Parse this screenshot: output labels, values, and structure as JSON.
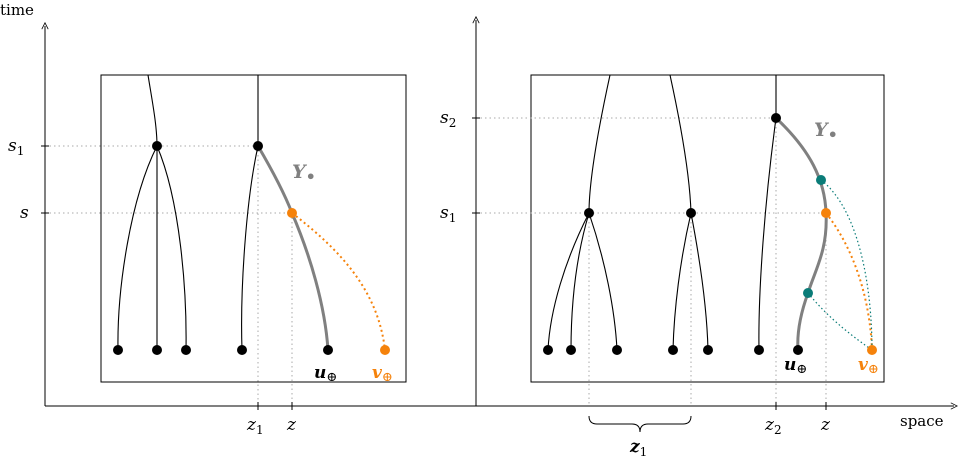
{
  "axes": {
    "y_label": "time",
    "x_label": "space"
  },
  "left_panel": {
    "y_ticks": [
      {
        "main": "s",
        "sub": "1"
      },
      {
        "main": "s",
        "sub": ""
      }
    ],
    "x_ticks": [
      {
        "main": "z",
        "sub": "1"
      },
      {
        "main": "z",
        "sub": ""
      }
    ],
    "process_label": "Y",
    "process_sub": "•",
    "u_label": "u",
    "u_sub": "⊕",
    "v_label": "v",
    "v_sub": "⊕"
  },
  "right_panel": {
    "y_ticks": [
      {
        "main": "s",
        "sub": "2"
      },
      {
        "main": "s",
        "sub": "1"
      }
    ],
    "x_ticks": [
      {
        "main": "z",
        "sub": "2"
      },
      {
        "main": "z",
        "sub": ""
      }
    ],
    "brace_label": "z",
    "brace_sub": "1",
    "process_label": "Y",
    "process_sub": "•",
    "u_label": "u",
    "u_sub": "⊕",
    "v_label": "v",
    "v_sub": "⊕"
  },
  "colors": {
    "black_path": "#000000",
    "gray_path": "#808080",
    "orange": "#f5820b",
    "teal": "#0a7c78",
    "dotted_guide": "#aaaaaa"
  }
}
